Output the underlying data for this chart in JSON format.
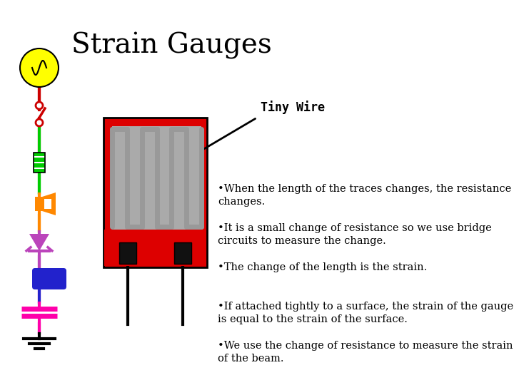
{
  "title": "Strain Gauges",
  "title_fontsize": 28,
  "background_color": "#ffffff",
  "tiny_wire_label": "Tiny Wire",
  "bullet_points": [
    "•When the length of the traces changes, the resistance changes.",
    "•It is a small change of resistance so we use bridge circuits to measure the change.",
    "•The change of the length is the strain.",
    "•If attached tightly to a surface, the strain of the gauge is equal to the strain of the surface.",
    "•We use the change of resistance to measure the strain of the beam."
  ],
  "bullet_fontsize": 10.5,
  "gauge_color": "#dd0000",
  "wire_pattern_color": "#999999",
  "wire_leads_color": "#111111",
  "left_wire_colors": [
    "#cc0000",
    "#00cc00",
    "#ff8800",
    "#cc44cc",
    "#0000cc",
    "#ff00aa",
    "#000000"
  ],
  "ac_color": "#ffff00",
  "switch_color": "#cc0000",
  "resistor_color": "#00cc00",
  "speaker_color": "#ff8800",
  "diode_color": "#bb44bb",
  "led_color": "#2222cc",
  "cap_color": "#ff00aa",
  "ground_color": "#000000"
}
